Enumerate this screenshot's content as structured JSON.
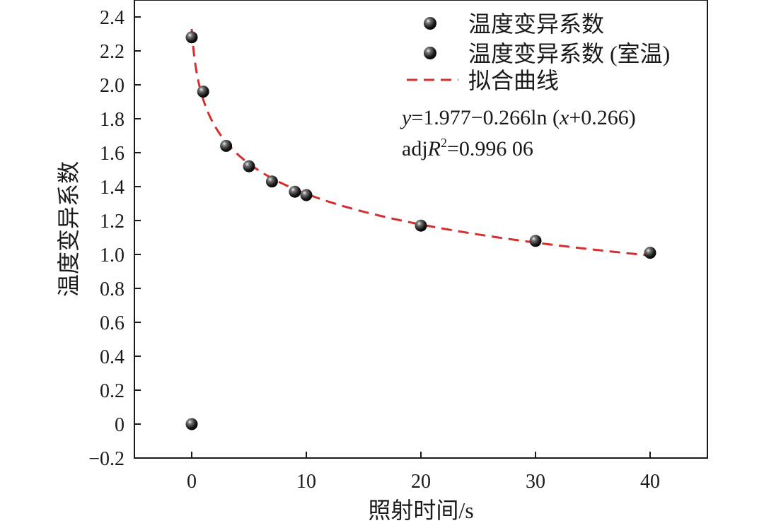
{
  "chart_data": {
    "type": "scatter",
    "title": "",
    "xlabel": "照射时间/s",
    "ylabel": "温度变异系数",
    "xlim": [
      -5,
      45
    ],
    "ylim": [
      -0.2,
      2.5
    ],
    "xticks": [
      0,
      10,
      20,
      30,
      40
    ],
    "xtick_labels": [
      "0",
      "10",
      "20",
      "30",
      "40"
    ],
    "yticks": [
      -0.2,
      0,
      0.2,
      0.4,
      0.6,
      0.8,
      1.0,
      1.2,
      1.4,
      1.6,
      1.8,
      2.0,
      2.2,
      2.4
    ],
    "ytick_labels": [
      "−0.2",
      "0",
      "0.2",
      "0.4",
      "0.6",
      "0.8",
      "1.0",
      "1.2",
      "1.4",
      "1.6",
      "1.8",
      "2.0",
      "2.2",
      "2.4"
    ],
    "series": [
      {
        "name": "温度变异系数",
        "kind": "scatter",
        "points": [
          {
            "x": 0,
            "y": 2.28
          },
          {
            "x": 1,
            "y": 1.96
          },
          {
            "x": 3,
            "y": 1.64
          },
          {
            "x": 5,
            "y": 1.52
          },
          {
            "x": 7,
            "y": 1.43
          },
          {
            "x": 9,
            "y": 1.37
          },
          {
            "x": 10,
            "y": 1.35
          },
          {
            "x": 20,
            "y": 1.17
          },
          {
            "x": 30,
            "y": 1.08
          },
          {
            "x": 40,
            "y": 1.01
          }
        ]
      },
      {
        "name": "温度变异系数 (室温)",
        "kind": "scatter",
        "points": [
          {
            "x": 0,
            "y": 0
          }
        ]
      },
      {
        "name": "拟合曲线",
        "kind": "fit-line",
        "color": "#d42f2f",
        "model": {
          "a": 1.977,
          "b": 0.266,
          "c": 0.266
        },
        "x_range": [
          0,
          40
        ]
      }
    ],
    "legend": {
      "position": "top-right",
      "entries": [
        "温度变异系数",
        "温度变异系数 (室温)",
        "拟合曲线"
      ]
    },
    "annotations": {
      "equation": {
        "y": "y",
        "eq1": "=1.977−0.266ln (",
        "x": "x",
        "eq2": "+0.266)"
      },
      "r2": {
        "prefix": "adj",
        "r": "R",
        "sup": "2",
        "value": "=0.996 06"
      }
    },
    "colors": {
      "fit": "#d42f2f",
      "marker": "#111111",
      "axis": "#1a1a1a"
    }
  }
}
